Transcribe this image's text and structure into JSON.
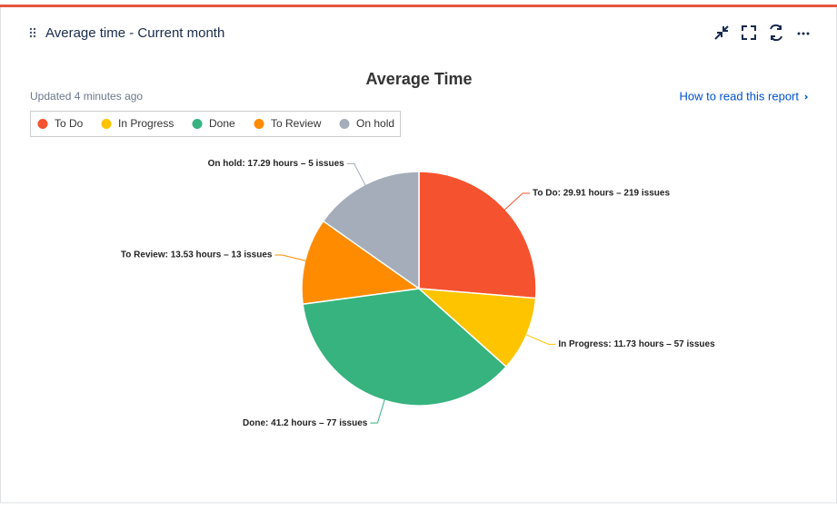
{
  "header": {
    "title": "Average time - Current month",
    "updated": "Updated 4 minutes ago",
    "link": "How to read this report"
  },
  "chart_data": {
    "type": "pie",
    "title": "Average Time",
    "categories": [
      "To Do",
      "In Progress",
      "Done",
      "To Review",
      "On hold"
    ],
    "values": [
      29.91,
      11.73,
      41.2,
      13.53,
      17.29
    ],
    "value_labels": [
      "To Do: 29.91 hours – 219 issues",
      "In Progress: 11.73 hours – 57 issues",
      "Done: 41.2 hours – 77 issues",
      "To Review: 13.53 hours – 13 issues",
      "On hold: 17.29 hours – 5 issues"
    ],
    "colors": [
      "#f5532f",
      "#ffc400",
      "#36b37e",
      "#ff8b00",
      "#a5adba"
    ],
    "legend": "top-left"
  }
}
